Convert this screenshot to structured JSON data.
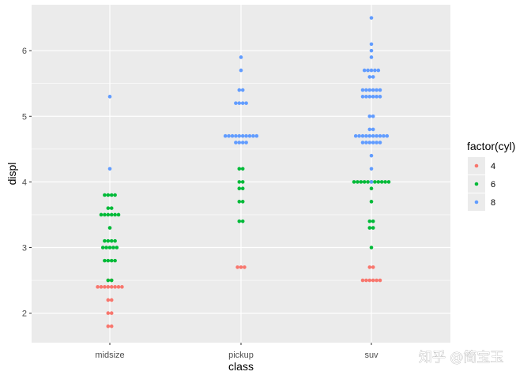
{
  "chart_data": {
    "type": "scatter",
    "subtype": "dotplot",
    "xlabel": "class",
    "ylabel": "displ",
    "categories": [
      "midsize",
      "pickup",
      "suv"
    ],
    "yticks": [
      2,
      3,
      4,
      5,
      6
    ],
    "ylim": [
      1.55,
      6.7
    ],
    "grid": true,
    "legend": {
      "title": "factor(cyl)",
      "position": "right",
      "entries": [
        "4",
        "6",
        "8"
      ]
    },
    "series": [
      {
        "name": "4",
        "color": "#F8766D",
        "stacks": [
          {
            "class": "midsize",
            "y": 2.5,
            "count": 2
          },
          {
            "class": "midsize",
            "y": 2.4,
            "count": 8
          },
          {
            "class": "midsize",
            "y": 2.2,
            "count": 2
          },
          {
            "class": "midsize",
            "y": 2.0,
            "count": 2
          },
          {
            "class": "midsize",
            "y": 1.8,
            "count": 2
          },
          {
            "class": "pickup",
            "y": 2.7,
            "count": 3
          },
          {
            "class": "suv",
            "y": 2.7,
            "count": 2
          },
          {
            "class": "suv",
            "y": 2.5,
            "count": 6
          }
        ]
      },
      {
        "name": "6",
        "color": "#00BA38",
        "stacks": [
          {
            "class": "midsize",
            "y": 3.8,
            "count": 4
          },
          {
            "class": "midsize",
            "y": 3.6,
            "count": 2
          },
          {
            "class": "midsize",
            "y": 3.5,
            "count": 6
          },
          {
            "class": "midsize",
            "y": 3.3,
            "count": 1
          },
          {
            "class": "midsize",
            "y": 3.1,
            "count": 4
          },
          {
            "class": "midsize",
            "y": 3.0,
            "count": 5
          },
          {
            "class": "midsize",
            "y": 2.8,
            "count": 4
          },
          {
            "class": "midsize",
            "y": 2.5,
            "count": 2
          },
          {
            "class": "pickup",
            "y": 4.2,
            "count": 2
          },
          {
            "class": "pickup",
            "y": 4.0,
            "count": 2
          },
          {
            "class": "pickup",
            "y": 3.9,
            "count": 2
          },
          {
            "class": "pickup",
            "y": 3.7,
            "count": 2
          },
          {
            "class": "pickup",
            "y": 3.4,
            "count": 2
          },
          {
            "class": "suv",
            "y": 4.0,
            "count": 11
          },
          {
            "class": "suv",
            "y": 3.9,
            "count": 1
          },
          {
            "class": "suv",
            "y": 3.7,
            "count": 1
          },
          {
            "class": "suv",
            "y": 3.4,
            "count": 2
          },
          {
            "class": "suv",
            "y": 3.3,
            "count": 2
          },
          {
            "class": "suv",
            "y": 3.0,
            "count": 1
          }
        ]
      },
      {
        "name": "8",
        "color": "#619CFF",
        "stacks": [
          {
            "class": "midsize",
            "y": 5.3,
            "count": 1
          },
          {
            "class": "midsize",
            "y": 4.2,
            "count": 1
          },
          {
            "class": "pickup",
            "y": 5.9,
            "count": 1
          },
          {
            "class": "pickup",
            "y": 5.7,
            "count": 1
          },
          {
            "class": "pickup",
            "y": 5.4,
            "count": 2
          },
          {
            "class": "pickup",
            "y": 5.2,
            "count": 4
          },
          {
            "class": "pickup",
            "y": 4.7,
            "count": 10
          },
          {
            "class": "pickup",
            "y": 4.6,
            "count": 4
          },
          {
            "class": "suv",
            "y": 6.5,
            "count": 1
          },
          {
            "class": "suv",
            "y": 6.1,
            "count": 1
          },
          {
            "class": "suv",
            "y": 6.0,
            "count": 1
          },
          {
            "class": "suv",
            "y": 5.9,
            "count": 1
          },
          {
            "class": "suv",
            "y": 5.7,
            "count": 5
          },
          {
            "class": "suv",
            "y": 5.6,
            "count": 2
          },
          {
            "class": "suv",
            "y": 5.4,
            "count": 6
          },
          {
            "class": "suv",
            "y": 5.3,
            "count": 6
          },
          {
            "class": "suv",
            "y": 5.0,
            "count": 2
          },
          {
            "class": "suv",
            "y": 4.8,
            "count": 2
          },
          {
            "class": "suv",
            "y": 4.7,
            "count": 10
          },
          {
            "class": "suv",
            "y": 4.6,
            "count": 6
          },
          {
            "class": "suv",
            "y": 4.4,
            "count": 1
          },
          {
            "class": "suv",
            "y": 4.2,
            "count": 1
          },
          {
            "class": "suv",
            "y": 4.0,
            "count": 1
          }
        ]
      }
    ]
  },
  "watermark": "知乎 @简宝玉"
}
